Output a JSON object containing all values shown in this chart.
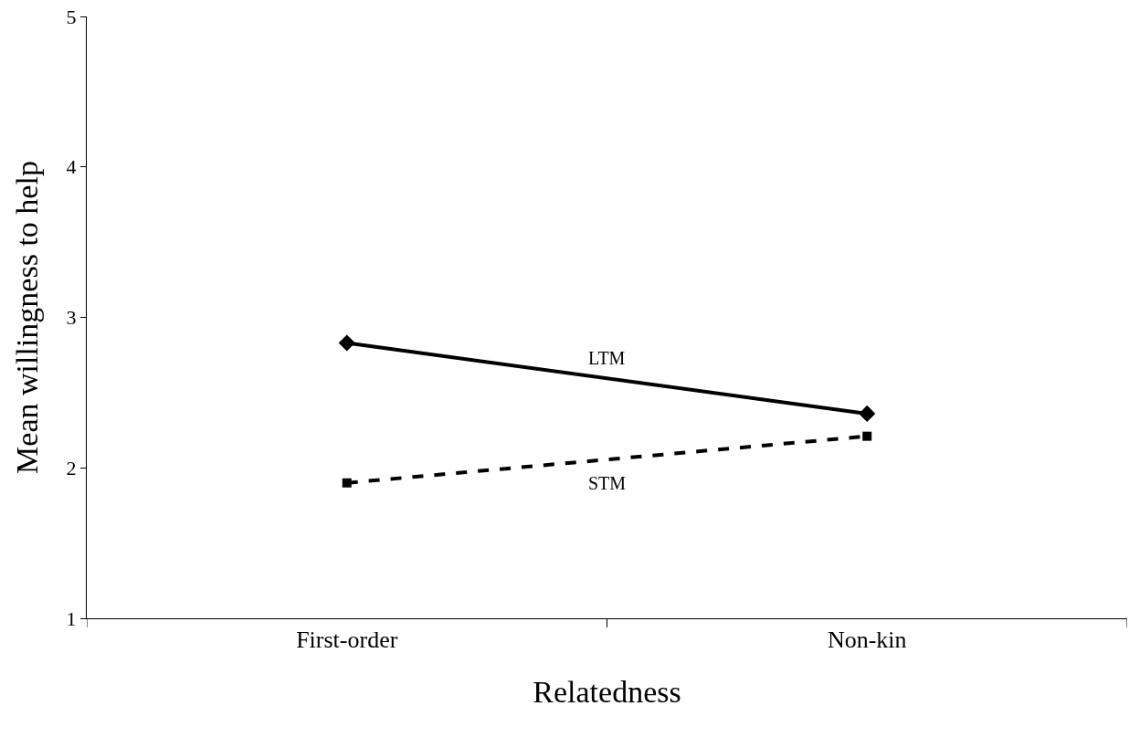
{
  "chart_data": {
    "type": "line",
    "xlabel": "Relatedness",
    "ylabel": "Mean willingness to help",
    "categories": [
      "First-order",
      "Non-kin"
    ],
    "series": [
      {
        "name": "LTM",
        "color": "#000000",
        "values": [
          2.83,
          2.36
        ],
        "marker": "diamond",
        "line_style": "solid"
      },
      {
        "name": "STM",
        "color": "#000000",
        "values": [
          1.9,
          2.21
        ],
        "marker": "square",
        "line_style": "dashed"
      }
    ],
    "ylim": [
      1,
      5
    ],
    "yticks": [
      1,
      2,
      3,
      4,
      5
    ],
    "legend": false
  }
}
